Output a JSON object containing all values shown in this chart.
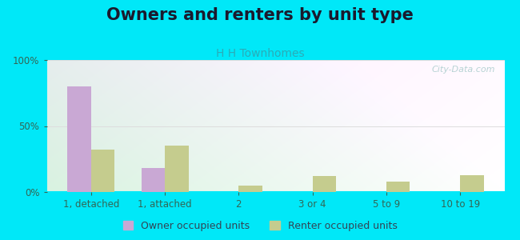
{
  "title": "Owners and renters by unit type",
  "subtitle": "H H Townhomes",
  "categories": [
    "1, detached",
    "1, attached",
    "2",
    "3 or 4",
    "5 to 9",
    "10 to 19"
  ],
  "owner_values": [
    80,
    18,
    0,
    0,
    0,
    0
  ],
  "renter_values": [
    32,
    35,
    5,
    12,
    8,
    13
  ],
  "owner_color": "#c9a8d4",
  "renter_color": "#c5cc8e",
  "ylim": [
    0,
    100
  ],
  "yticks": [
    0,
    50,
    100
  ],
  "ytick_labels": [
    "0%",
    "50%",
    "100%"
  ],
  "background_outer": "#00e8f8",
  "grid_color": "#dddddd",
  "bar_width": 0.32,
  "legend_owner": "Owner occupied units",
  "legend_renter": "Renter occupied units",
  "watermark": "City-Data.com",
  "title_fontsize": 15,
  "subtitle_fontsize": 10,
  "tick_fontsize": 8.5,
  "title_color": "#1a1a2e",
  "subtitle_color": "#2aacb8",
  "tick_color": "#336655"
}
